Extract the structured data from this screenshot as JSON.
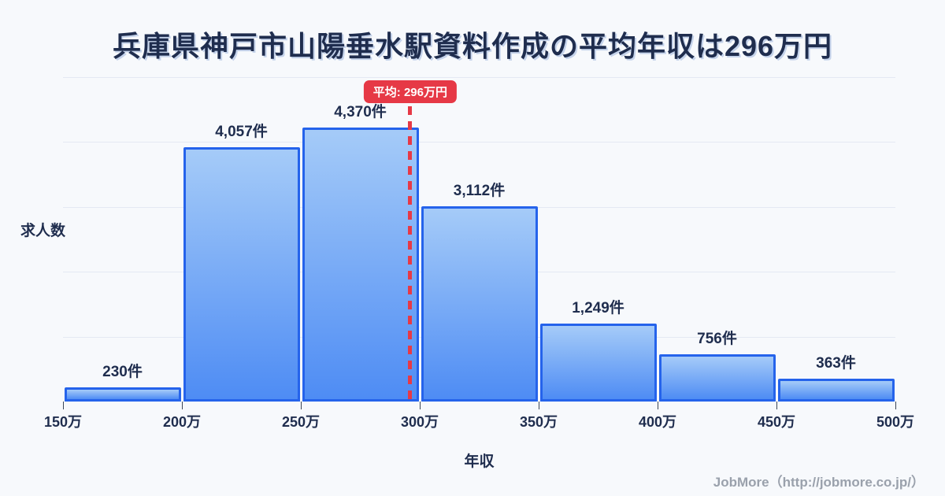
{
  "title": "兵庫県神戸市山陽垂水駅資料作成の平均年収は296万円",
  "chart_data": {
    "type": "bar",
    "subtype": "histogram",
    "title": "兵庫県神戸市山陽垂水駅資料作成の平均年収は296万円",
    "xlabel": "年収",
    "ylabel": "求人数",
    "x_ticks": [
      "150万",
      "200万",
      "250万",
      "300万",
      "350万",
      "400万",
      "450万",
      "500万"
    ],
    "x_range_man": [
      150,
      500
    ],
    "bin_width_man": 50,
    "categories": [
      "150万-200万",
      "200万-250万",
      "250万-300万",
      "300万-350万",
      "350万-400万",
      "400万-450万",
      "450万-500万"
    ],
    "values": [
      230,
      4057,
      4370,
      3112,
      1249,
      756,
      363
    ],
    "value_labels": [
      "230件",
      "4,057件",
      "4,370件",
      "3,112件",
      "1,249件",
      "756件",
      "363件"
    ],
    "unit": "件",
    "average": {
      "value_man": 296,
      "label": "平均: 296万円"
    },
    "grid": "horizontal-light",
    "legend": "none",
    "colors": {
      "bar_fill_top": "#a5cbf8",
      "bar_fill_bottom": "#4e8cf4",
      "bar_border": "#2563eb",
      "average_accent": "#e63946",
      "text_dark": "#1f2d4e",
      "gridline": "#e4e9f3",
      "background": "#f7f9fc",
      "footer_text": "#9aa1ac"
    }
  },
  "footer": {
    "credit": "JobMore（http://jobmore.co.jp/）"
  }
}
